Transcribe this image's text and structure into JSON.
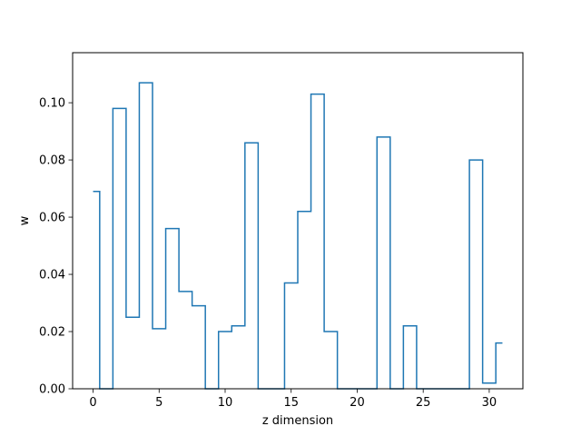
{
  "chart_data": {
    "type": "line",
    "drawstyle": "steps-mid",
    "xlabel": "z dimension",
    "ylabel": "w",
    "xlim": [
      -1.55,
      32.55
    ],
    "ylim": [
      0,
      0.1175
    ],
    "xticks": [
      0,
      5,
      10,
      15,
      20,
      25,
      30
    ],
    "yticks": [
      0.0,
      0.02,
      0.04,
      0.06,
      0.08,
      0.1
    ],
    "ytick_labels": [
      "0.00",
      "0.02",
      "0.04",
      "0.06",
      "0.08",
      "0.10"
    ],
    "grid": false,
    "series": [
      {
        "color": "#1f77b4",
        "x": [
          0,
          1,
          2,
          3,
          4,
          5,
          6,
          7,
          8,
          9,
          10,
          11,
          12,
          13,
          14,
          15,
          16,
          17,
          18,
          19,
          20,
          21,
          22,
          23,
          24,
          25,
          26,
          27,
          28,
          29,
          30,
          31
        ],
        "y": [
          0.069,
          0.0,
          0.098,
          0.025,
          0.107,
          0.021,
          0.056,
          0.034,
          0.029,
          0.0,
          0.02,
          0.022,
          0.086,
          0.0,
          0.0,
          0.037,
          0.062,
          0.103,
          0.02,
          0.0,
          0.0,
          0.0,
          0.088,
          0.0,
          0.022,
          0.0,
          0.0,
          0.0,
          0.0,
          0.08,
          0.002,
          0.016
        ]
      }
    ]
  }
}
